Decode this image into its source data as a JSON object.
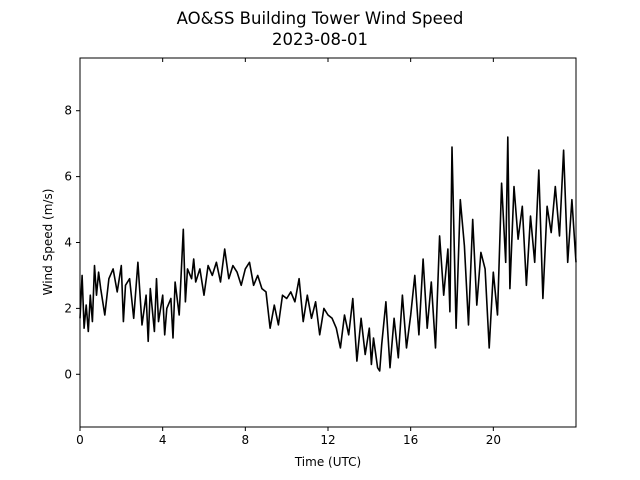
{
  "chart_data": {
    "type": "line",
    "title": "AO&SS Building Tower Wind Speed",
    "subtitle": "2023-08-01",
    "xlabel": "Time (UTC)",
    "ylabel": "Wind Speed (m/s)",
    "xlim": [
      0,
      24
    ],
    "ylim": [
      -1.6,
      9.6
    ],
    "xticks": [
      0,
      4,
      8,
      12,
      16,
      20
    ],
    "yticks": [
      0,
      2,
      4,
      6,
      8
    ],
    "grid": false,
    "legend": "none",
    "color": "#000000",
    "series": [
      {
        "x": [
          0.0,
          0.1,
          0.2,
          0.3,
          0.4,
          0.5,
          0.6,
          0.7,
          0.8,
          0.9,
          1.0,
          1.2,
          1.4,
          1.6,
          1.8,
          2.0,
          2.1,
          2.2,
          2.4,
          2.6,
          2.8,
          3.0,
          3.2,
          3.3,
          3.4,
          3.6,
          3.7,
          3.8,
          4.0,
          4.1,
          4.2,
          4.4,
          4.5,
          4.6,
          4.8,
          5.0,
          5.1,
          5.2,
          5.4,
          5.5,
          5.6,
          5.8,
          6.0,
          6.2,
          6.4,
          6.6,
          6.8,
          7.0,
          7.2,
          7.4,
          7.6,
          7.8,
          8.0,
          8.2,
          8.4,
          8.6,
          8.8,
          9.0,
          9.2,
          9.4,
          9.6,
          9.8,
          10.0,
          10.2,
          10.4,
          10.6,
          10.8,
          11.0,
          11.2,
          11.4,
          11.6,
          11.8,
          12.0,
          12.2,
          12.4,
          12.6,
          12.8,
          13.0,
          13.2,
          13.4,
          13.6,
          13.8,
          14.0,
          14.1,
          14.2,
          14.4,
          14.5,
          14.6,
          14.8,
          15.0,
          15.2,
          15.4,
          15.6,
          15.8,
          16.0,
          16.2,
          16.4,
          16.6,
          16.8,
          17.0,
          17.2,
          17.4,
          17.6,
          17.8,
          17.9,
          18.0,
          18.2,
          18.4,
          18.6,
          18.8,
          19.0,
          19.2,
          19.4,
          19.6,
          19.8,
          20.0,
          20.2,
          20.4,
          20.6,
          20.7,
          20.8,
          21.0,
          21.2,
          21.4,
          21.6,
          21.8,
          22.0,
          22.2,
          22.4,
          22.6,
          22.8,
          23.0,
          23.2,
          23.4,
          23.6,
          23.8,
          24.0
        ],
        "values": [
          1.7,
          3.0,
          1.4,
          2.1,
          1.3,
          2.4,
          1.6,
          3.3,
          2.4,
          3.1,
          2.6,
          1.8,
          2.9,
          3.2,
          2.5,
          3.3,
          1.6,
          2.7,
          2.9,
          1.7,
          3.4,
          1.5,
          2.4,
          1.0,
          2.6,
          1.3,
          2.9,
          1.6,
          2.4,
          1.2,
          2.0,
          2.3,
          1.1,
          2.8,
          1.8,
          4.4,
          2.2,
          3.2,
          2.9,
          3.5,
          2.8,
          3.2,
          2.4,
          3.3,
          3.0,
          3.4,
          2.8,
          3.8,
          2.9,
          3.3,
          3.1,
          2.7,
          3.2,
          3.4,
          2.7,
          3.0,
          2.6,
          2.5,
          1.4,
          2.1,
          1.5,
          2.4,
          2.3,
          2.5,
          2.2,
          2.9,
          1.6,
          2.4,
          1.7,
          2.2,
          1.2,
          2.0,
          1.8,
          1.7,
          1.4,
          0.8,
          1.8,
          1.2,
          2.3,
          0.4,
          1.7,
          0.6,
          1.4,
          0.3,
          1.1,
          0.2,
          0.1,
          0.9,
          2.2,
          0.2,
          1.7,
          0.5,
          2.4,
          0.8,
          1.8,
          3.0,
          1.2,
          3.5,
          1.4,
          2.8,
          0.8,
          4.2,
          2.4,
          3.8,
          1.9,
          6.9,
          1.4,
          5.3,
          3.9,
          1.5,
          4.7,
          2.1,
          3.7,
          3.2,
          0.8,
          3.1,
          1.8,
          5.8,
          3.4,
          7.2,
          2.6,
          5.7,
          4.1,
          5.1,
          2.7,
          4.8,
          3.4,
          6.2,
          2.3,
          5.1,
          4.3,
          5.7,
          4.2,
          6.8,
          3.4,
          5.3,
          3.4
        ]
      }
    ]
  }
}
